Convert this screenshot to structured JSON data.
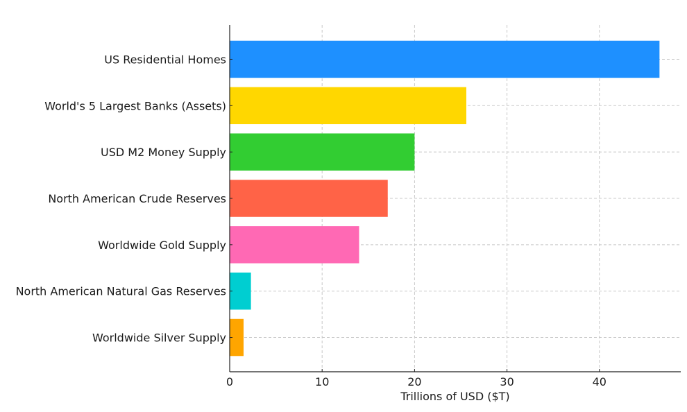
{
  "chart_data": {
    "type": "bar",
    "orientation": "horizontal",
    "title": "",
    "xlabel": "Trillions of USD ($T)",
    "ylabel": "",
    "xlim": [
      0,
      48.8
    ],
    "xticks": [
      0,
      10,
      20,
      30,
      40
    ],
    "grid": true,
    "categories": [
      "US Residential Homes",
      "World's 5 Largest Banks (Assets)",
      "USD M2 Money Supply",
      "North American Crude Reserves",
      "Worldwide Gold Supply",
      "North American Natural Gas Reserves",
      "Worldwide Silver Supply"
    ],
    "values": [
      46.5,
      25.6,
      20.0,
      17.1,
      14.0,
      2.3,
      1.5
    ],
    "colors": [
      "#1E90FF",
      "#FFD700",
      "#32CD32",
      "#FF6347",
      "#FF69B4",
      "#00CED1",
      "#FFA500"
    ]
  }
}
